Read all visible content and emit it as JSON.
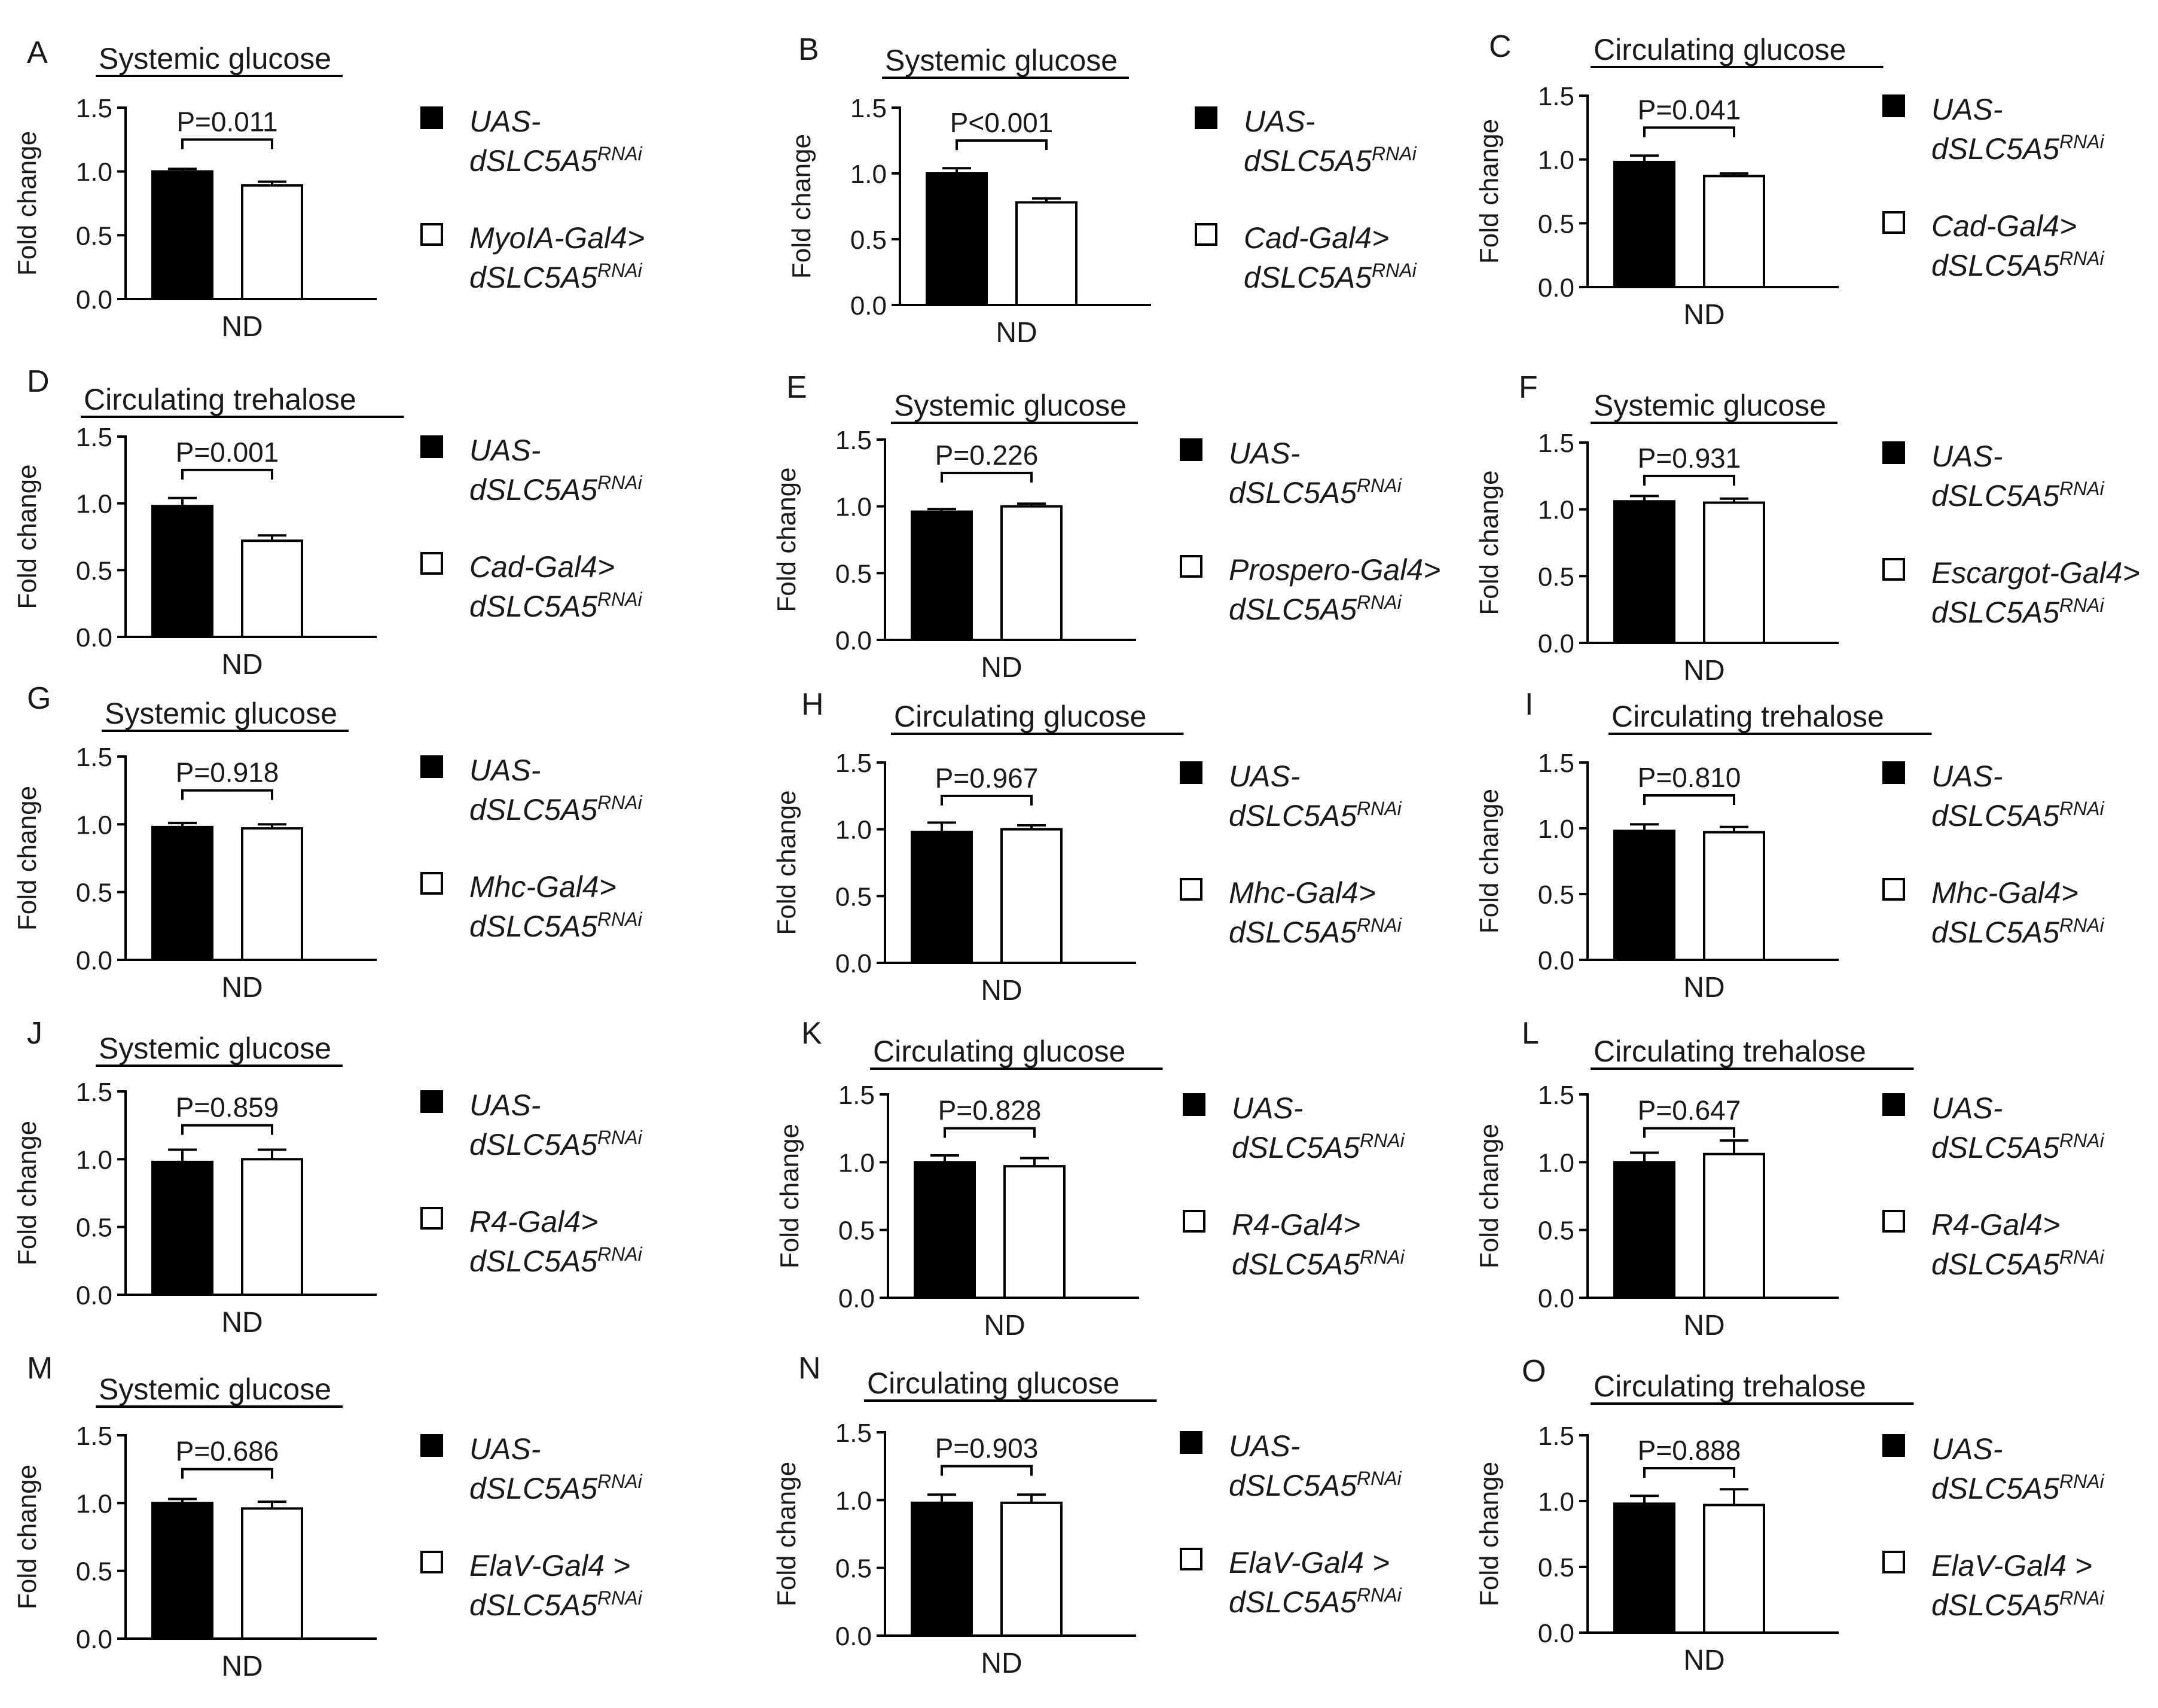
{
  "chart_data": [
    {
      "panel": "A",
      "type": "bar",
      "title": "Systemic glucose",
      "ylabel": "Fold change",
      "xlabel": "ND",
      "ylim": [
        0,
        1.5
      ],
      "yticks": [
        "0.0",
        "0.5",
        "1.0",
        "1.5"
      ],
      "categories": [
        "ND"
      ],
      "series": [
        {
          "name": "UAS-dSLC5A5",
          "values": [
            1.0
          ],
          "error": [
            0.02
          ]
        },
        {
          "name": "MyoIA-Gal4>dSLC5A5",
          "values": [
            0.89
          ],
          "error": [
            0.03
          ]
        }
      ],
      "legend": [
        {
          "line1": "UAS-",
          "line2": "dSLC5A5",
          "sup": "RNAi"
        },
        {
          "line1": "MyoIA-Gal4>",
          "line2": "dSLC5A5",
          "sup": "RNAi"
        }
      ],
      "annotation": "P=0.011"
    },
    {
      "panel": "B",
      "type": "bar",
      "title": "Systemic glucose",
      "ylabel": "Fold change",
      "xlabel": "ND",
      "ylim": [
        0,
        1.5
      ],
      "yticks": [
        "0.0",
        "0.5",
        "1.0",
        "1.5"
      ],
      "categories": [
        "ND"
      ],
      "series": [
        {
          "name": "UAS-dSLC5A5",
          "values": [
            1.0
          ],
          "error": [
            0.04
          ]
        },
        {
          "name": "Cad-Gal4>dSLC5A5",
          "values": [
            0.78
          ],
          "error": [
            0.03
          ]
        }
      ],
      "legend": [
        {
          "line1": "UAS-",
          "line2": "dSLC5A5",
          "sup": "RNAi"
        },
        {
          "line1": "Cad-Gal4>",
          "line2": "dSLC5A5",
          "sup": "RNAi"
        }
      ],
      "annotation": "P<0.001"
    },
    {
      "panel": "C",
      "type": "bar",
      "title": "Circulating glucose",
      "ylabel": "Fold change",
      "xlabel": "ND",
      "ylim": [
        0,
        1.5
      ],
      "yticks": [
        "0.0",
        "0.5",
        "1.0",
        "1.5"
      ],
      "categories": [
        "ND"
      ],
      "series": [
        {
          "name": "UAS-dSLC5A5",
          "values": [
            0.98
          ],
          "error": [
            0.05
          ]
        },
        {
          "name": "Cad-Gal4>dSLC5A5",
          "values": [
            0.87
          ],
          "error": [
            0.02
          ]
        }
      ],
      "legend": [
        {
          "line1": "UAS-",
          "line2": "dSLC5A5",
          "sup": "RNAi"
        },
        {
          "line1": "Cad-Gal4>",
          "line2": "dSLC5A5",
          "sup": "RNAi"
        }
      ],
      "annotation": "P=0.041"
    },
    {
      "panel": "D",
      "type": "bar",
      "title": "Circulating trehalose",
      "ylabel": "Fold change",
      "xlabel": "ND",
      "ylim": [
        0,
        1.5
      ],
      "yticks": [
        "0.0",
        "0.5",
        "1.0",
        "1.5"
      ],
      "categories": [
        "ND"
      ],
      "series": [
        {
          "name": "UAS-dSLC5A5",
          "values": [
            0.98
          ],
          "error": [
            0.06
          ]
        },
        {
          "name": "Cad-Gal4>dSLC5A5",
          "values": [
            0.72
          ],
          "error": [
            0.04
          ]
        }
      ],
      "legend": [
        {
          "line1": "UAS-",
          "line2": "dSLC5A5",
          "sup": "RNAi"
        },
        {
          "line1": "Cad-Gal4>",
          "line2": "dSLC5A5",
          "sup": "RNAi"
        }
      ],
      "annotation": "P=0.001"
    },
    {
      "panel": "E",
      "type": "bar",
      "title": "Systemic glucose",
      "ylabel": "Fold change",
      "xlabel": "ND",
      "ylim": [
        0,
        1.5
      ],
      "yticks": [
        "0.0",
        "0.5",
        "1.0",
        "1.5"
      ],
      "categories": [
        "ND"
      ],
      "series": [
        {
          "name": "UAS-dSLC5A5",
          "values": [
            0.96
          ],
          "error": [
            0.02
          ]
        },
        {
          "name": "Prospero-Gal4>dSLC5A5",
          "values": [
            1.0
          ],
          "error": [
            0.02
          ]
        }
      ],
      "legend": [
        {
          "line1": "UAS-",
          "line2": "dSLC5A5",
          "sup": "RNAi"
        },
        {
          "line1": "Prospero-Gal4>",
          "line2": "dSLC5A5",
          "sup": "RNAi"
        }
      ],
      "annotation": "P=0.226"
    },
    {
      "panel": "F",
      "type": "bar",
      "title": "Systemic glucose",
      "ylabel": "Fold change",
      "xlabel": "ND",
      "ylim": [
        0,
        1.5
      ],
      "yticks": [
        "0.0",
        "0.5",
        "1.0",
        "1.5"
      ],
      "categories": [
        "ND"
      ],
      "series": [
        {
          "name": "UAS-dSLC5A5",
          "values": [
            1.06
          ],
          "error": [
            0.04
          ]
        },
        {
          "name": "Escargot-Gal4>dSLC5A5",
          "values": [
            1.05
          ],
          "error": [
            0.03
          ]
        }
      ],
      "legend": [
        {
          "line1": "UAS-",
          "line2": "dSLC5A5",
          "sup": "RNAi"
        },
        {
          "line1": "Escargot-Gal4>",
          "line2": "dSLC5A5",
          "sup": "RNAi"
        }
      ],
      "annotation": "P=0.931"
    },
    {
      "panel": "G",
      "type": "bar",
      "title": "Systemic glucose",
      "ylabel": "Fold change",
      "xlabel": "ND",
      "ylim": [
        0,
        1.5
      ],
      "yticks": [
        "0.0",
        "0.5",
        "1.0",
        "1.5"
      ],
      "categories": [
        "ND"
      ],
      "series": [
        {
          "name": "UAS-dSLC5A5",
          "values": [
            0.98
          ],
          "error": [
            0.03
          ]
        },
        {
          "name": "Mhc-Gal4>dSLC5A5",
          "values": [
            0.97
          ],
          "error": [
            0.03
          ]
        }
      ],
      "legend": [
        {
          "line1": "UAS-",
          "line2": "dSLC5A5",
          "sup": "RNAi"
        },
        {
          "line1": "Mhc-Gal4>",
          "line2": "dSLC5A5",
          "sup": "RNAi"
        }
      ],
      "annotation": "P=0.918"
    },
    {
      "panel": "H",
      "type": "bar",
      "title": "Circulating glucose",
      "ylabel": "Fold change",
      "xlabel": "ND",
      "ylim": [
        0,
        1.5
      ],
      "yticks": [
        "0.0",
        "0.5",
        "1.0",
        "1.5"
      ],
      "categories": [
        "ND"
      ],
      "series": [
        {
          "name": "UAS-dSLC5A5",
          "values": [
            0.98
          ],
          "error": [
            0.07
          ]
        },
        {
          "name": "Mhc-Gal4>dSLC5A5",
          "values": [
            1.0
          ],
          "error": [
            0.03
          ]
        }
      ],
      "legend": [
        {
          "line1": "UAS-",
          "line2": "dSLC5A5",
          "sup": "RNAi"
        },
        {
          "line1": "Mhc-Gal4>",
          "line2": "dSLC5A5",
          "sup": "RNAi"
        }
      ],
      "annotation": "P=0.967"
    },
    {
      "panel": "I",
      "type": "bar",
      "title": "Circulating trehalose",
      "ylabel": "Fold change",
      "xlabel": "ND",
      "ylim": [
        0,
        1.5
      ],
      "yticks": [
        "0.0",
        "0.5",
        "1.0",
        "1.5"
      ],
      "categories": [
        "ND"
      ],
      "series": [
        {
          "name": "UAS-dSLC5A5",
          "values": [
            0.98
          ],
          "error": [
            0.05
          ]
        },
        {
          "name": "Mhc-Gal4>dSLC5A5",
          "values": [
            0.97
          ],
          "error": [
            0.04
          ]
        }
      ],
      "legend": [
        {
          "line1": "UAS-",
          "line2": "dSLC5A5",
          "sup": "RNAi"
        },
        {
          "line1": "Mhc-Gal4>",
          "line2": "dSLC5A5",
          "sup": "RNAi"
        }
      ],
      "annotation": "P=0.810"
    },
    {
      "panel": "J",
      "type": "bar",
      "title": "Systemic glucose",
      "ylabel": "Fold change",
      "xlabel": "ND",
      "ylim": [
        0,
        1.5
      ],
      "yticks": [
        "0.0",
        "0.5",
        "1.0",
        "1.5"
      ],
      "categories": [
        "ND"
      ],
      "series": [
        {
          "name": "UAS-dSLC5A5",
          "values": [
            0.98
          ],
          "error": [
            0.09
          ]
        },
        {
          "name": "R4-Gal4>dSLC5A5",
          "values": [
            1.0
          ],
          "error": [
            0.07
          ]
        }
      ],
      "legend": [
        {
          "line1": "UAS-",
          "line2": "dSLC5A5",
          "sup": "RNAi"
        },
        {
          "line1": "R4-Gal4>",
          "line2": "dSLC5A5",
          "sup": "RNAi"
        }
      ],
      "annotation": "P=0.859"
    },
    {
      "panel": "K",
      "type": "bar",
      "title": "Circulating glucose",
      "ylabel": "Fold change",
      "xlabel": "ND",
      "ylim": [
        0,
        1.5
      ],
      "yticks": [
        "0.0",
        "0.5",
        "1.0",
        "1.5"
      ],
      "categories": [
        "ND"
      ],
      "series": [
        {
          "name": "UAS-dSLC5A5",
          "values": [
            1.0
          ],
          "error": [
            0.05
          ]
        },
        {
          "name": "R4-Gal4>dSLC5A5",
          "values": [
            0.97
          ],
          "error": [
            0.06
          ]
        }
      ],
      "legend": [
        {
          "line1": "UAS-",
          "line2": "dSLC5A5",
          "sup": "RNAi"
        },
        {
          "line1": "R4-Gal4>",
          "line2": "dSLC5A5",
          "sup": "RNAi"
        }
      ],
      "annotation": "P=0.828"
    },
    {
      "panel": "L",
      "type": "bar",
      "title": "Circulating trehalose",
      "ylabel": "Fold change",
      "xlabel": "ND",
      "ylim": [
        0,
        1.5
      ],
      "yticks": [
        "0.0",
        "0.5",
        "1.0",
        "1.5"
      ],
      "categories": [
        "ND"
      ],
      "series": [
        {
          "name": "UAS-dSLC5A5",
          "values": [
            1.0
          ],
          "error": [
            0.07
          ]
        },
        {
          "name": "R4-Gal4>dSLC5A5",
          "values": [
            1.06
          ],
          "error": [
            0.1
          ]
        }
      ],
      "legend": [
        {
          "line1": "UAS-",
          "line2": "dSLC5A5",
          "sup": "RNAi"
        },
        {
          "line1": "R4-Gal4>",
          "line2": "dSLC5A5",
          "sup": "RNAi"
        }
      ],
      "annotation": "P=0.647"
    },
    {
      "panel": "M",
      "type": "bar",
      "title": "Systemic glucose",
      "ylabel": "Fold change",
      "xlabel": "ND",
      "ylim": [
        0,
        1.5
      ],
      "yticks": [
        "0.0",
        "0.5",
        "1.0",
        "1.5"
      ],
      "categories": [
        "ND"
      ],
      "series": [
        {
          "name": "UAS-dSLC5A5",
          "values": [
            1.0
          ],
          "error": [
            0.03
          ]
        },
        {
          "name": "ElaV-Gal4 > dSLC5A5",
          "values": [
            0.96
          ],
          "error": [
            0.05
          ]
        }
      ],
      "legend": [
        {
          "line1": "UAS-",
          "line2": "dSLC5A5",
          "sup": "RNAi"
        },
        {
          "line1": "ElaV-Gal4 >",
          "line2": "dSLC5A5",
          "sup": "RNAi"
        }
      ],
      "annotation": "P=0.686"
    },
    {
      "panel": "N",
      "type": "bar",
      "title": "Circulating glucose",
      "ylabel": "Fold change",
      "xlabel": "ND",
      "ylim": [
        0,
        1.5
      ],
      "yticks": [
        "0.0",
        "0.5",
        "1.0",
        "1.5"
      ],
      "categories": [
        "ND"
      ],
      "series": [
        {
          "name": "UAS-dSLC5A5",
          "values": [
            0.98
          ],
          "error": [
            0.06
          ]
        },
        {
          "name": "ElaV-Gal4 > dSLC5A5",
          "values": [
            0.98
          ],
          "error": [
            0.06
          ]
        }
      ],
      "legend": [
        {
          "line1": "UAS-",
          "line2": "dSLC5A5",
          "sup": "RNAi"
        },
        {
          "line1": "ElaV-Gal4 >",
          "line2": "dSLC5A5",
          "sup": "RNAi"
        }
      ],
      "annotation": "P=0.903"
    },
    {
      "panel": "O",
      "type": "bar",
      "title": "Circulating trehalose",
      "ylabel": "Fold change",
      "xlabel": "ND",
      "ylim": [
        0,
        1.5
      ],
      "yticks": [
        "0.0",
        "0.5",
        "1.0",
        "1.5"
      ],
      "categories": [
        "ND"
      ],
      "series": [
        {
          "name": "UAS-dSLC5A5",
          "values": [
            0.98
          ],
          "error": [
            0.06
          ]
        },
        {
          "name": "ElaV-Gal4 > dSLC5A5",
          "values": [
            0.97
          ],
          "error": [
            0.12
          ]
        }
      ],
      "legend": [
        {
          "line1": "UAS-",
          "line2": "dSLC5A5",
          "sup": "RNAi"
        },
        {
          "line1": "ElaV-Gal4 >",
          "line2": "dSLC5A5",
          "sup": "RNAi"
        }
      ],
      "annotation": "P=0.888"
    }
  ]
}
